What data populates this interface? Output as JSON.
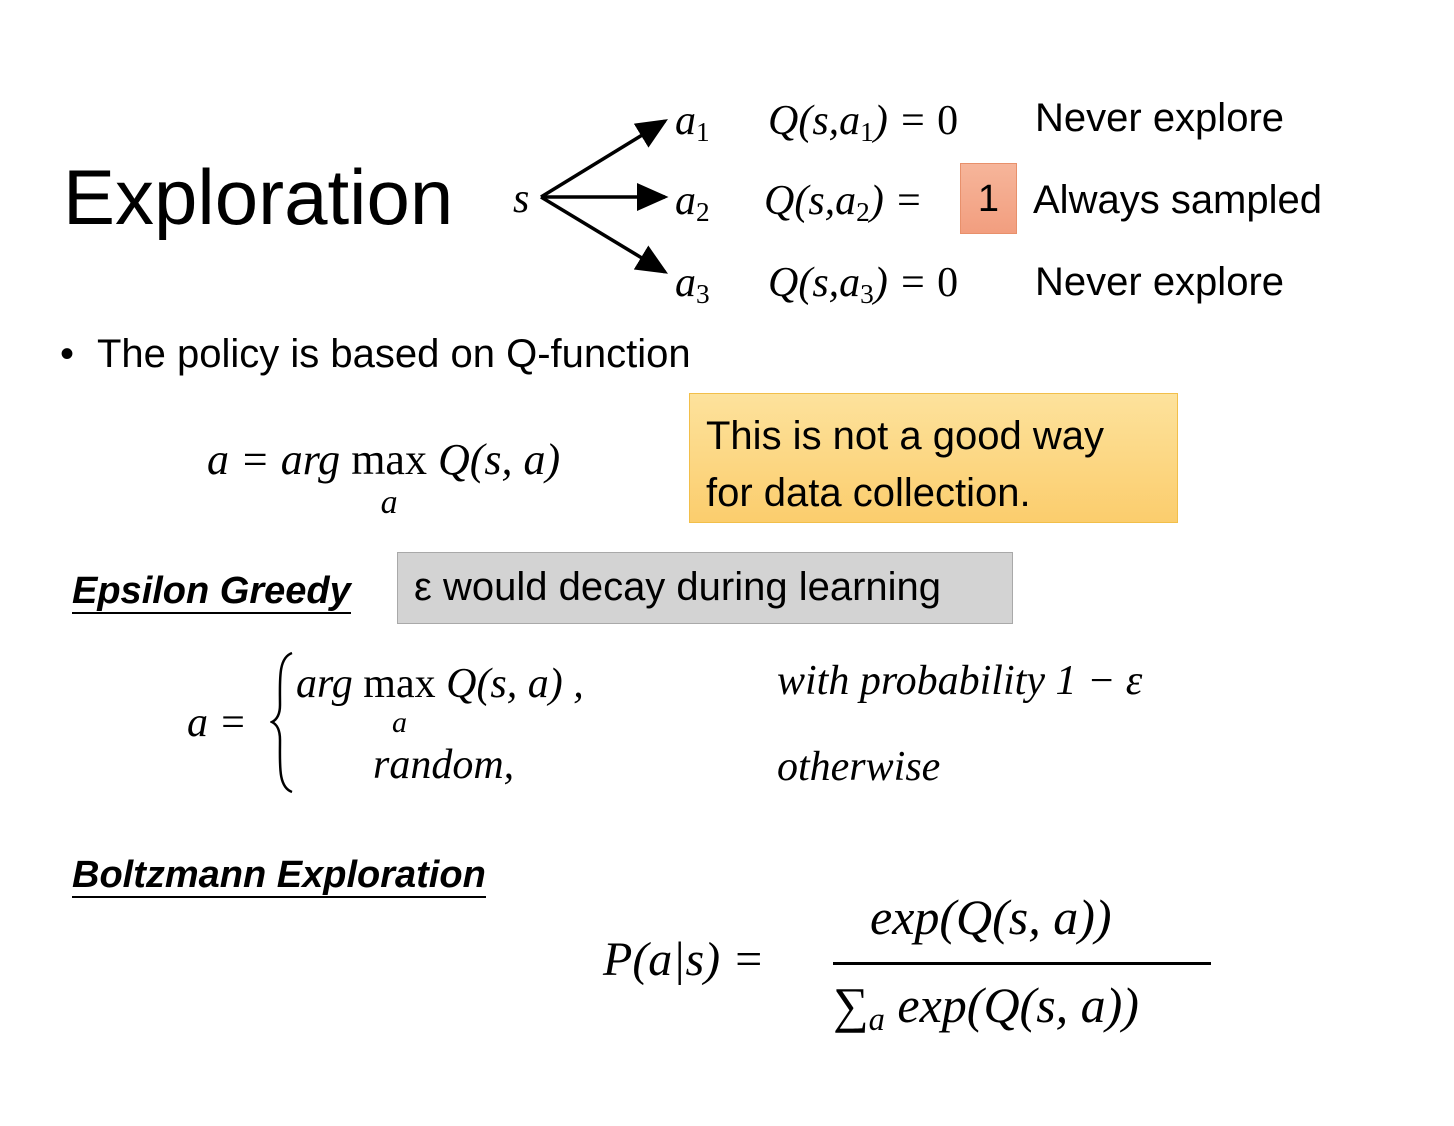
{
  "title": "Exploration",
  "tree": {
    "state": "s",
    "actions": [
      {
        "action": "a",
        "index": "1",
        "q_prefix": "Q(s,",
        "q_action": "a",
        "q_index": "1",
        "q_suffix": ") = ",
        "value": "0",
        "note": "Never explore",
        "highlighted": false
      },
      {
        "action": "a",
        "index": "2",
        "q_prefix": "Q(s,",
        "q_action": "a",
        "q_index": "2",
        "q_suffix": ") = ",
        "value": "1",
        "note": "Always sampled",
        "highlighted": true
      },
      {
        "action": "a",
        "index": "3",
        "q_prefix": "Q(s,",
        "q_action": "a",
        "q_index": "3",
        "q_suffix": ") = ",
        "value": "0",
        "note": "Never explore",
        "highlighted": false
      }
    ],
    "highlight_color": "#f4a68a"
  },
  "bullet": {
    "marker": "•",
    "text": "The policy is based on Q-function"
  },
  "argmax_formula": {
    "lhs": "a = arg ",
    "op": "max",
    "sub": "a",
    "rhs": " Q(s, a)"
  },
  "callout": {
    "line1": "This is not a good way",
    "line2": "for data collection.",
    "color": "#fcd67f"
  },
  "epsilon_greedy": {
    "heading": "Epsilon Greedy",
    "note": "ε would decay during learning",
    "note_color": "#d3d3d3",
    "lhs": "a =",
    "case1_expr_pre": "arg ",
    "case1_op": "max",
    "case1_sub": "a",
    "case1_expr_post": " Q(s, a) ,",
    "case1_cond": "with probability 1 − ε",
    "case2_expr": "random,",
    "case2_cond": "otherwise"
  },
  "boltzmann": {
    "heading": "Boltzmann Exploration",
    "lhs": "P(a|s) =",
    "numerator": "exp(Q(s, a))",
    "denominator_sum": "∑",
    "denominator_sub": "a",
    "denominator": " exp(Q(s, a))"
  }
}
